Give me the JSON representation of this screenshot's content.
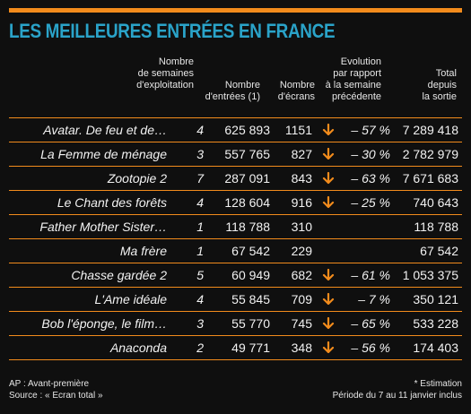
{
  "title": "LES MEILLEURES ENTRÉES EN FRANCE",
  "colors": {
    "accent": "#f28b1c",
    "title": "#2aa3c9",
    "background": "#0f0f0f"
  },
  "headers": {
    "weeks": [
      "Nombre",
      "de semaines",
      "d'exploitation"
    ],
    "entrees": [
      "Nombre",
      "d'entrées (1)"
    ],
    "ecrans": [
      "Nombre",
      "d'écrans"
    ],
    "evolution": [
      "Evolution",
      "par rapport",
      "à la semaine",
      "précédente"
    ],
    "total": [
      "Total",
      "depuis",
      "la sortie"
    ]
  },
  "rows": [
    {
      "film": "Avatar. De feu et de…",
      "weeks": "4",
      "entrees": "625 893",
      "ecrans": "1151",
      "evolution": "– 57 %",
      "total": "7 289 418",
      "arrow": true
    },
    {
      "film": "La Femme de ménage",
      "weeks": "3",
      "entrees": "557 765",
      "ecrans": "827",
      "evolution": "– 30 %",
      "total": "2 782 979",
      "arrow": true
    },
    {
      "film": "Zootopie 2",
      "weeks": "7",
      "entrees": "287 091",
      "ecrans": "843",
      "evolution": "– 63 %",
      "total": "7 671 683",
      "arrow": true
    },
    {
      "film": "Le Chant des forêts",
      "weeks": "4",
      "entrees": "128 604",
      "ecrans": "916",
      "evolution": "– 25 %",
      "total": "740 643",
      "arrow": true
    },
    {
      "film": "Father Mother Sister…",
      "weeks": "1",
      "entrees": "118 788",
      "ecrans": "310",
      "evolution": "",
      "total": "118 788",
      "arrow": false
    },
    {
      "film": "Ma frère",
      "weeks": "1",
      "entrees": "67 542",
      "ecrans": "229",
      "evolution": "",
      "total": "67 542",
      "arrow": false
    },
    {
      "film": "Chasse gardée 2",
      "weeks": "5",
      "entrees": "60 949",
      "ecrans": "682",
      "evolution": "– 61 %",
      "total": "1 053 375",
      "arrow": true
    },
    {
      "film": "L'Ame idéale",
      "weeks": "4",
      "entrees": "55 845",
      "ecrans": "709",
      "evolution": "– 7 %",
      "total": "350 121",
      "arrow": true
    },
    {
      "film": "Bob l'éponge, le film…",
      "weeks": "3",
      "entrees": "55 770",
      "ecrans": "745",
      "evolution": "– 65 %",
      "total": "533 228",
      "arrow": true
    },
    {
      "film": "Anaconda",
      "weeks": "2",
      "entrees": "49 771",
      "ecrans": "348",
      "evolution": "– 56 %",
      "total": "174 403",
      "arrow": true
    }
  ],
  "footer": {
    "left": [
      "AP : Avant-première",
      "Source : « Ecran total »"
    ],
    "right": [
      "* Estimation",
      "Période du 7 au 11 janvier inclus"
    ]
  }
}
